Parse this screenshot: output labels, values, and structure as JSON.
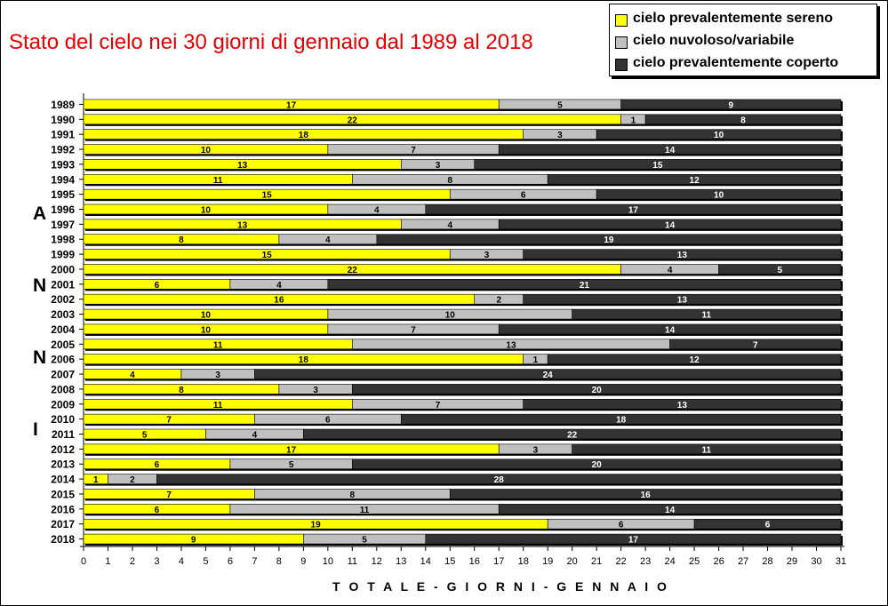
{
  "title": "Stato del cielo nei 30 giorni di gennaio dal 1989 al 2018",
  "side_letters": [
    "A",
    "N",
    "N",
    "I"
  ],
  "colors": {
    "sereno": "#ffff00",
    "nuvoloso": "#c0c0c0",
    "coperto": "#333333"
  },
  "chart_data": {
    "type": "bar",
    "orientation": "horizontal",
    "stacked": true,
    "title": "Stato del cielo nei 30 giorni di gennaio dal 1989 al 2018",
    "xlabel": "T O T A L E  - G I O R N I  -  G E N N A I O",
    "ylabel": "",
    "xlim": [
      0,
      31
    ],
    "xticks": [
      0,
      1,
      2,
      3,
      4,
      5,
      6,
      7,
      8,
      9,
      10,
      11,
      12,
      13,
      14,
      15,
      16,
      17,
      18,
      19,
      20,
      21,
      22,
      23,
      24,
      25,
      26,
      27,
      28,
      29,
      30,
      31
    ],
    "legend_position": "top-right",
    "categories": [
      "1989",
      "1990",
      "1991",
      "1992",
      "1993",
      "1994",
      "1995",
      "1996",
      "1997",
      "1998",
      "1999",
      "2000",
      "2001",
      "2002",
      "2003",
      "2004",
      "2005",
      "2006",
      "2007",
      "2008",
      "2009",
      "2010",
      "2011",
      "2012",
      "2013",
      "2014",
      "2015",
      "2016",
      "2017",
      "2018"
    ],
    "series": [
      {
        "name": "cielo prevalentemente sereno",
        "values": [
          17,
          22,
          18,
          10,
          13,
          11,
          15,
          10,
          13,
          8,
          15,
          22,
          6,
          16,
          10,
          10,
          11,
          18,
          4,
          8,
          11,
          7,
          5,
          17,
          6,
          1,
          7,
          6,
          19,
          9
        ]
      },
      {
        "name": "cielo nuvoloso/variabile",
        "values": [
          5,
          1,
          3,
          7,
          3,
          8,
          6,
          4,
          4,
          4,
          3,
          4,
          4,
          2,
          10,
          7,
          13,
          1,
          3,
          3,
          7,
          6,
          4,
          3,
          5,
          2,
          8,
          11,
          6,
          5
        ]
      },
      {
        "name": "cielo prevalentemente coperto",
        "values": [
          9,
          8,
          10,
          14,
          15,
          12,
          10,
          17,
          14,
          19,
          13,
          5,
          21,
          13,
          11,
          14,
          7,
          12,
          24,
          20,
          13,
          18,
          22,
          11,
          20,
          28,
          16,
          14,
          6,
          17
        ]
      }
    ]
  }
}
